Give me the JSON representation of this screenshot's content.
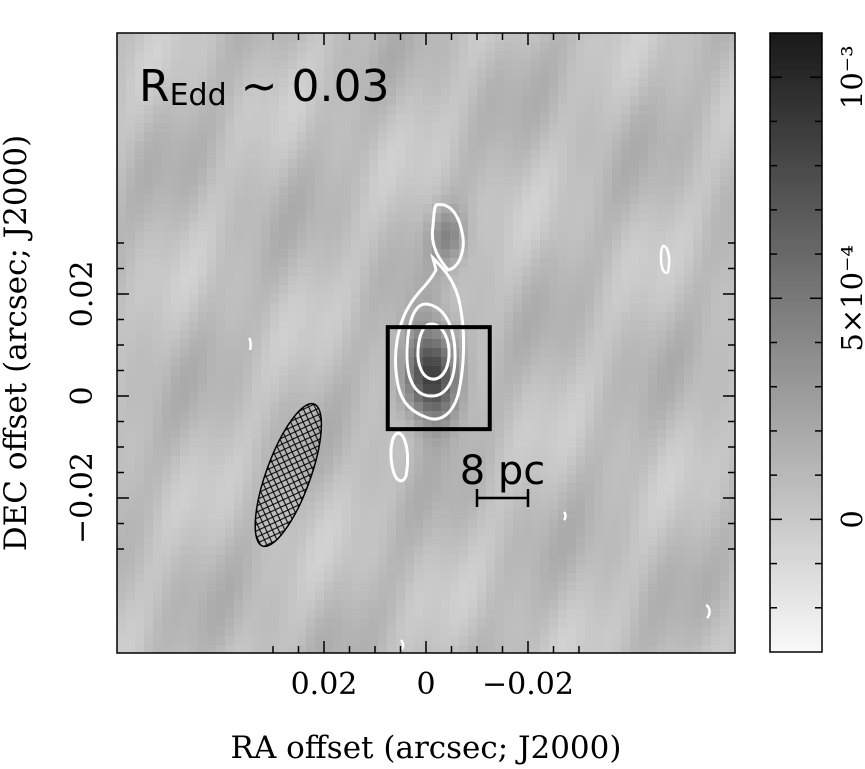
{
  "chart_data": {
    "type": "heatmap",
    "annotation": {
      "prefix": "R",
      "subscript": "Edd",
      "suffix": " ~ 0.03"
    },
    "xlabel": "RA offset (arcsec; J2000)",
    "ylabel": "DEC offset (arcsec; J2000)",
    "x_axis_reversed": true,
    "xlim": [
      0.03,
      -0.03
    ],
    "ylim": [
      -0.025,
      0.035
    ],
    "x_ticks": [
      {
        "value": 0.02,
        "label": "0.02"
      },
      {
        "value": 0,
        "label": "0"
      },
      {
        "value": -0.02,
        "label": "−0.02"
      }
    ],
    "y_ticks": [
      {
        "value": 0.02,
        "label": "0.02"
      },
      {
        "value": 0,
        "label": "0"
      },
      {
        "value": -0.02,
        "label": "−0.02"
      }
    ],
    "colorbar": {
      "range": [
        -0.0003,
        0.0011
      ],
      "ticks": [
        {
          "value": 0,
          "label": "0"
        },
        {
          "value": 0.0005,
          "label": "5×10⁻⁴"
        },
        {
          "value": 0.001,
          "label": "10⁻³"
        }
      ],
      "colormap": "gray_r"
    },
    "peak": {
      "ra": -0.001,
      "dec": 0.004
    },
    "box": {
      "ra_range": [
        0.0075,
        -0.0125
      ],
      "dec_range": [
        -0.0065,
        0.0135
      ]
    },
    "scale_bar": {
      "label": "8 pc",
      "ra_range": [
        -0.01,
        -0.02
      ],
      "dec": -0.02
    },
    "beam": {
      "ra": 0.027,
      "dec": -0.0155,
      "major_axis": 0.0155,
      "minor_axis": 0.0055,
      "position_angle_deg": 20
    },
    "colors": {
      "contour": "#ffffff",
      "box": "#000000",
      "axes": "#000000",
      "text": "#000000"
    }
  }
}
